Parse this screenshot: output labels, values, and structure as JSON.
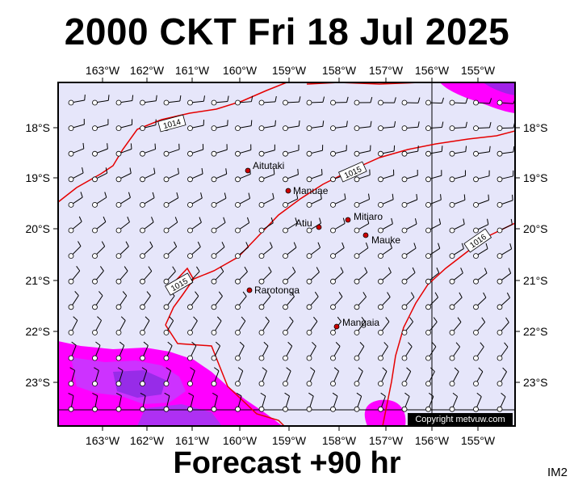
{
  "header": {
    "title": "2000 CKT Fri 18 Jul 2025"
  },
  "footer": {
    "forecast": "Forecast +90 hr",
    "code": "IM2"
  },
  "map": {
    "lon_labels": [
      "163°W",
      "162°W",
      "161°W",
      "160°W",
      "159°W",
      "158°W",
      "157°W",
      "156°W",
      "155°W"
    ],
    "lat_labels": [
      "18°S",
      "19°S",
      "20°S",
      "21°S",
      "22°S",
      "23°S"
    ],
    "isobars": [
      {
        "label": "1014",
        "color": "#e60000"
      },
      {
        "label": "1015",
        "color": "#e60000"
      },
      {
        "label": "1015",
        "color": "#e60000"
      },
      {
        "label": "1016",
        "color": "#e60000"
      }
    ],
    "places": [
      "Aitutaki",
      "Manuae",
      "Atiu",
      "Mitiaro",
      "Mauke",
      "Rarotonga",
      "Mangaia"
    ],
    "copyright": "Copyright metvuw.com",
    "colors": {
      "background": "#e6e6fa",
      "rain_light": "#ff00ff",
      "rain_heavy": "#8a2be2",
      "isobar": "#e60000",
      "place_marker": "#cc0000"
    }
  }
}
